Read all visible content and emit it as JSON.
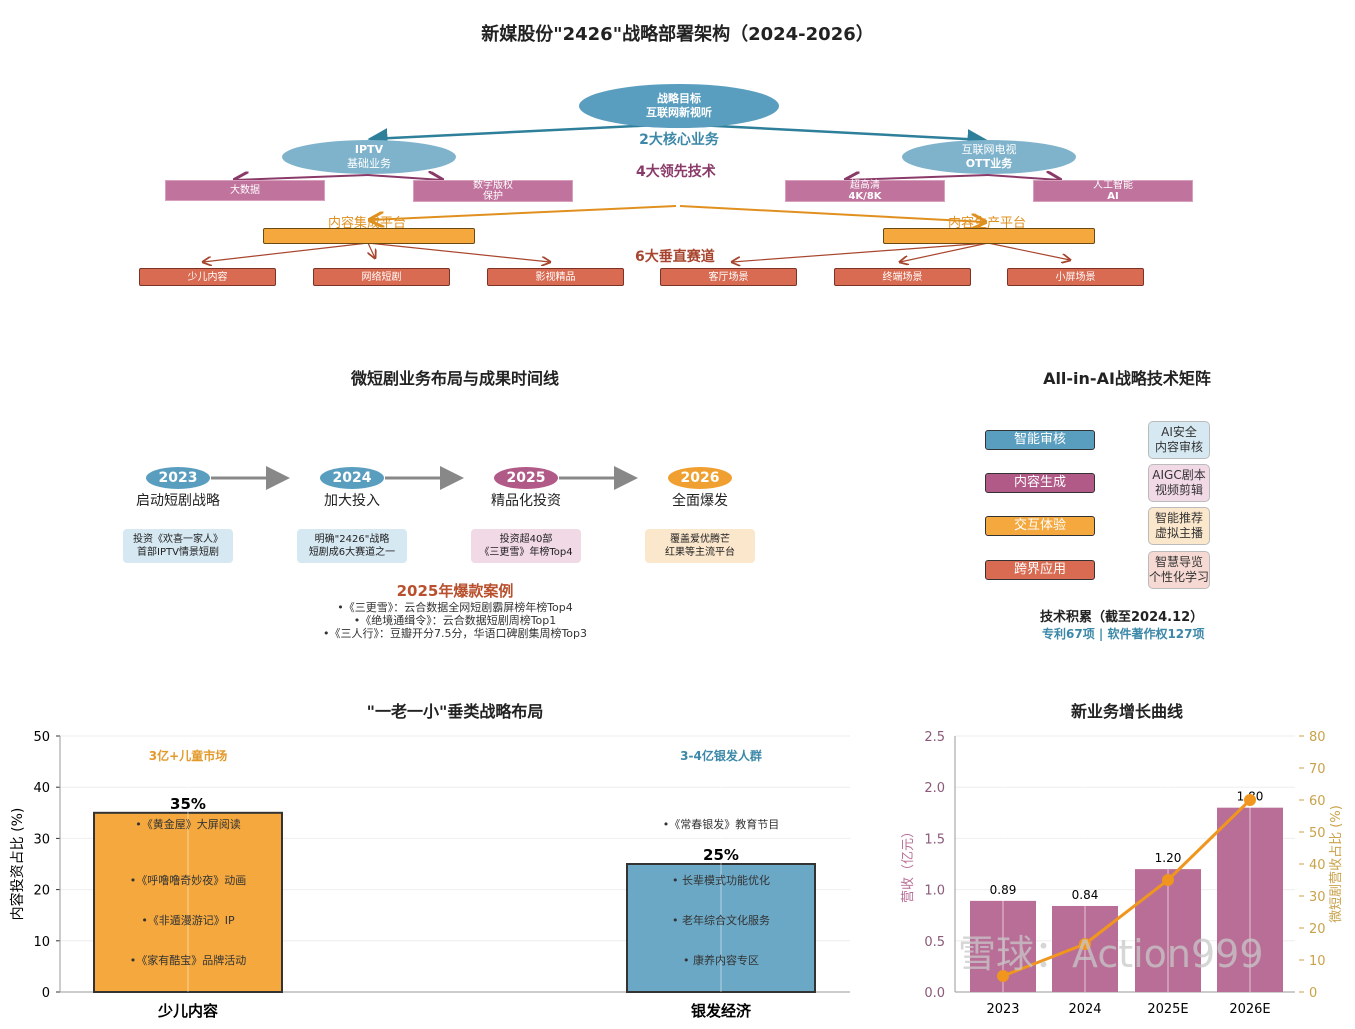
{
  "title": "新媒股份\"2426\"战略部署架构（2024-2026）",
  "architecture": {
    "goal": {
      "line1": "战略目标",
      "line2": "互联网新视听"
    },
    "label_core": "2大核心业务",
    "label_tech": "4大领先技术",
    "label_tracks": "6大垂直赛道",
    "iptv": {
      "line1": "IPTV",
      "line2": "基础业务"
    },
    "ott": {
      "line1": "互联网电视",
      "line2": "OTT业务"
    },
    "tech": [
      {
        "line1": "大数据",
        "line2": ""
      },
      {
        "line1": "数字版权",
        "line2": "保护"
      },
      {
        "line1": "超高清",
        "line2": "4K/8K"
      },
      {
        "line1": "人工智能",
        "line2": "AI"
      }
    ],
    "platform_left": "内容集成平台",
    "platform_right": "内容生产平台",
    "tracks": [
      "少儿内容",
      "网络短剧",
      "影视精品",
      "客厅场景",
      "终端场景",
      "小屏场景"
    ],
    "colors": {
      "core": "#5a9ebf",
      "tech": "#c0739c",
      "platform": "#f4a83e",
      "track": "#d86b52"
    }
  },
  "timeline": {
    "title": "微短剧业务布局与成果时间线",
    "milestones": [
      {
        "year": "2023",
        "label": "启动短剧战略",
        "desc1": "投资《欢喜一家人》",
        "desc2": "首部IPTV情景短剧",
        "color": "#5a9ebf",
        "bg": "#d6e8f2"
      },
      {
        "year": "2024",
        "label": "加大投入",
        "desc1": "明确\"2426\"战略",
        "desc2": "短剧成6大赛道之一",
        "color": "#5a9ebf",
        "bg": "#d6e8f2"
      },
      {
        "year": "2025",
        "label": "精品化投资",
        "desc1": "投资超40部",
        "desc2": "《三更雪》年榜Top4",
        "color": "#b15a88",
        "bg": "#f1d9e6"
      },
      {
        "year": "2026",
        "label": "全面爆发",
        "desc1": "覆盖爱优腾芒",
        "desc2": "红果等主流平台",
        "color": "#f0a030",
        "bg": "#fbe7cc"
      }
    ],
    "cases_title": "2025年爆款案例",
    "cases": [
      "•《三更雪》：云合数据全网短剧霸屏榜年榜Top4",
      "•《绝境通缉令》：云合数据短剧周榜Top1",
      "•《三人行》：豆瓣开分7.5分，华语口碑剧集周榜Top3"
    ]
  },
  "ai_matrix": {
    "title": "All-in-AI战略技术矩阵",
    "rows": [
      {
        "name": "智能审核",
        "detail1": "AI安全",
        "detail2": "内容审核",
        "color": "#5a9ebf",
        "bg": "#d6e8f2"
      },
      {
        "name": "内容生成",
        "detail1": "AIGC剧本",
        "detail2": "视频剪辑",
        "color": "#b15a88",
        "bg": "#f1d9e6"
      },
      {
        "name": "交互体验",
        "detail1": "智能推荐",
        "detail2": "虚拟主播",
        "color": "#f4a83e",
        "bg": "#fbe7cc"
      },
      {
        "name": "跨界应用",
        "detail1": "智慧导览",
        "detail2": "个性化学习",
        "color": "#d86b52",
        "bg": "#f6d9d2"
      }
    ],
    "accum_title": "技术积累（截至2024.12）",
    "accum_detail": "专利67项 | 软件著作权127项"
  },
  "chart_data": [
    {
      "type": "bar",
      "title": "\"一老一小\"垂类战略布局",
      "ylabel": "内容投资占比 (%)",
      "ylim": [
        0,
        50
      ],
      "yticks": [
        "0",
        "10",
        "20",
        "30",
        "40",
        "50"
      ],
      "categories": [
        "少儿内容",
        "银发经济"
      ],
      "values": [
        35,
        25
      ],
      "value_labels": [
        "35%",
        "25%"
      ],
      "colors": [
        "#f4a83e",
        "#6aa8c6"
      ],
      "annotations": [
        {
          "header": "3亿+儿童市场",
          "header_color": "#e39a2c",
          "items": [
            "•《黄金屋》大屏阅读",
            "•《呼噜噜奇妙夜》动画",
            "•《非遁漫游记》IP",
            "•《家有酷宝》品牌活动"
          ]
        },
        {
          "header": "3-4亿银发人群",
          "header_color": "#3c88a8",
          "items": [
            "•《常春银发》教育节目",
            "• 长辈模式功能优化",
            "• 老年综合文化服务",
            "• 康养内容专区"
          ]
        }
      ],
      "grid": true
    },
    {
      "type": "bar+line",
      "title": "新业务增长曲线",
      "categories": [
        "2023",
        "2024",
        "2025E",
        "2026E"
      ],
      "series": [
        {
          "type": "bar",
          "axis": "left",
          "values": [
            0.89,
            0.84,
            1.2,
            1.8
          ],
          "labels": [
            "0.89",
            "0.84",
            "1.20",
            "1.80"
          ],
          "color": "#b86e96"
        },
        {
          "type": "line",
          "axis": "right",
          "values": [
            5,
            15,
            35,
            60
          ],
          "color": "#f0961e"
        }
      ],
      "ylabel_left": "营收（亿元）",
      "ylabel_right": "微短剧营收占比 (%)",
      "ylim_left": [
        0,
        2.5
      ],
      "yticks_left": [
        "0.0",
        "0.5",
        "1.0",
        "1.5",
        "2.0",
        "2.5"
      ],
      "ylim_right": [
        0,
        80
      ],
      "yticks_right": [
        "0",
        "10",
        "20",
        "30",
        "40",
        "50",
        "60",
        "70",
        "80"
      ],
      "grid": true
    }
  ],
  "watermark": "雪球：Action999"
}
